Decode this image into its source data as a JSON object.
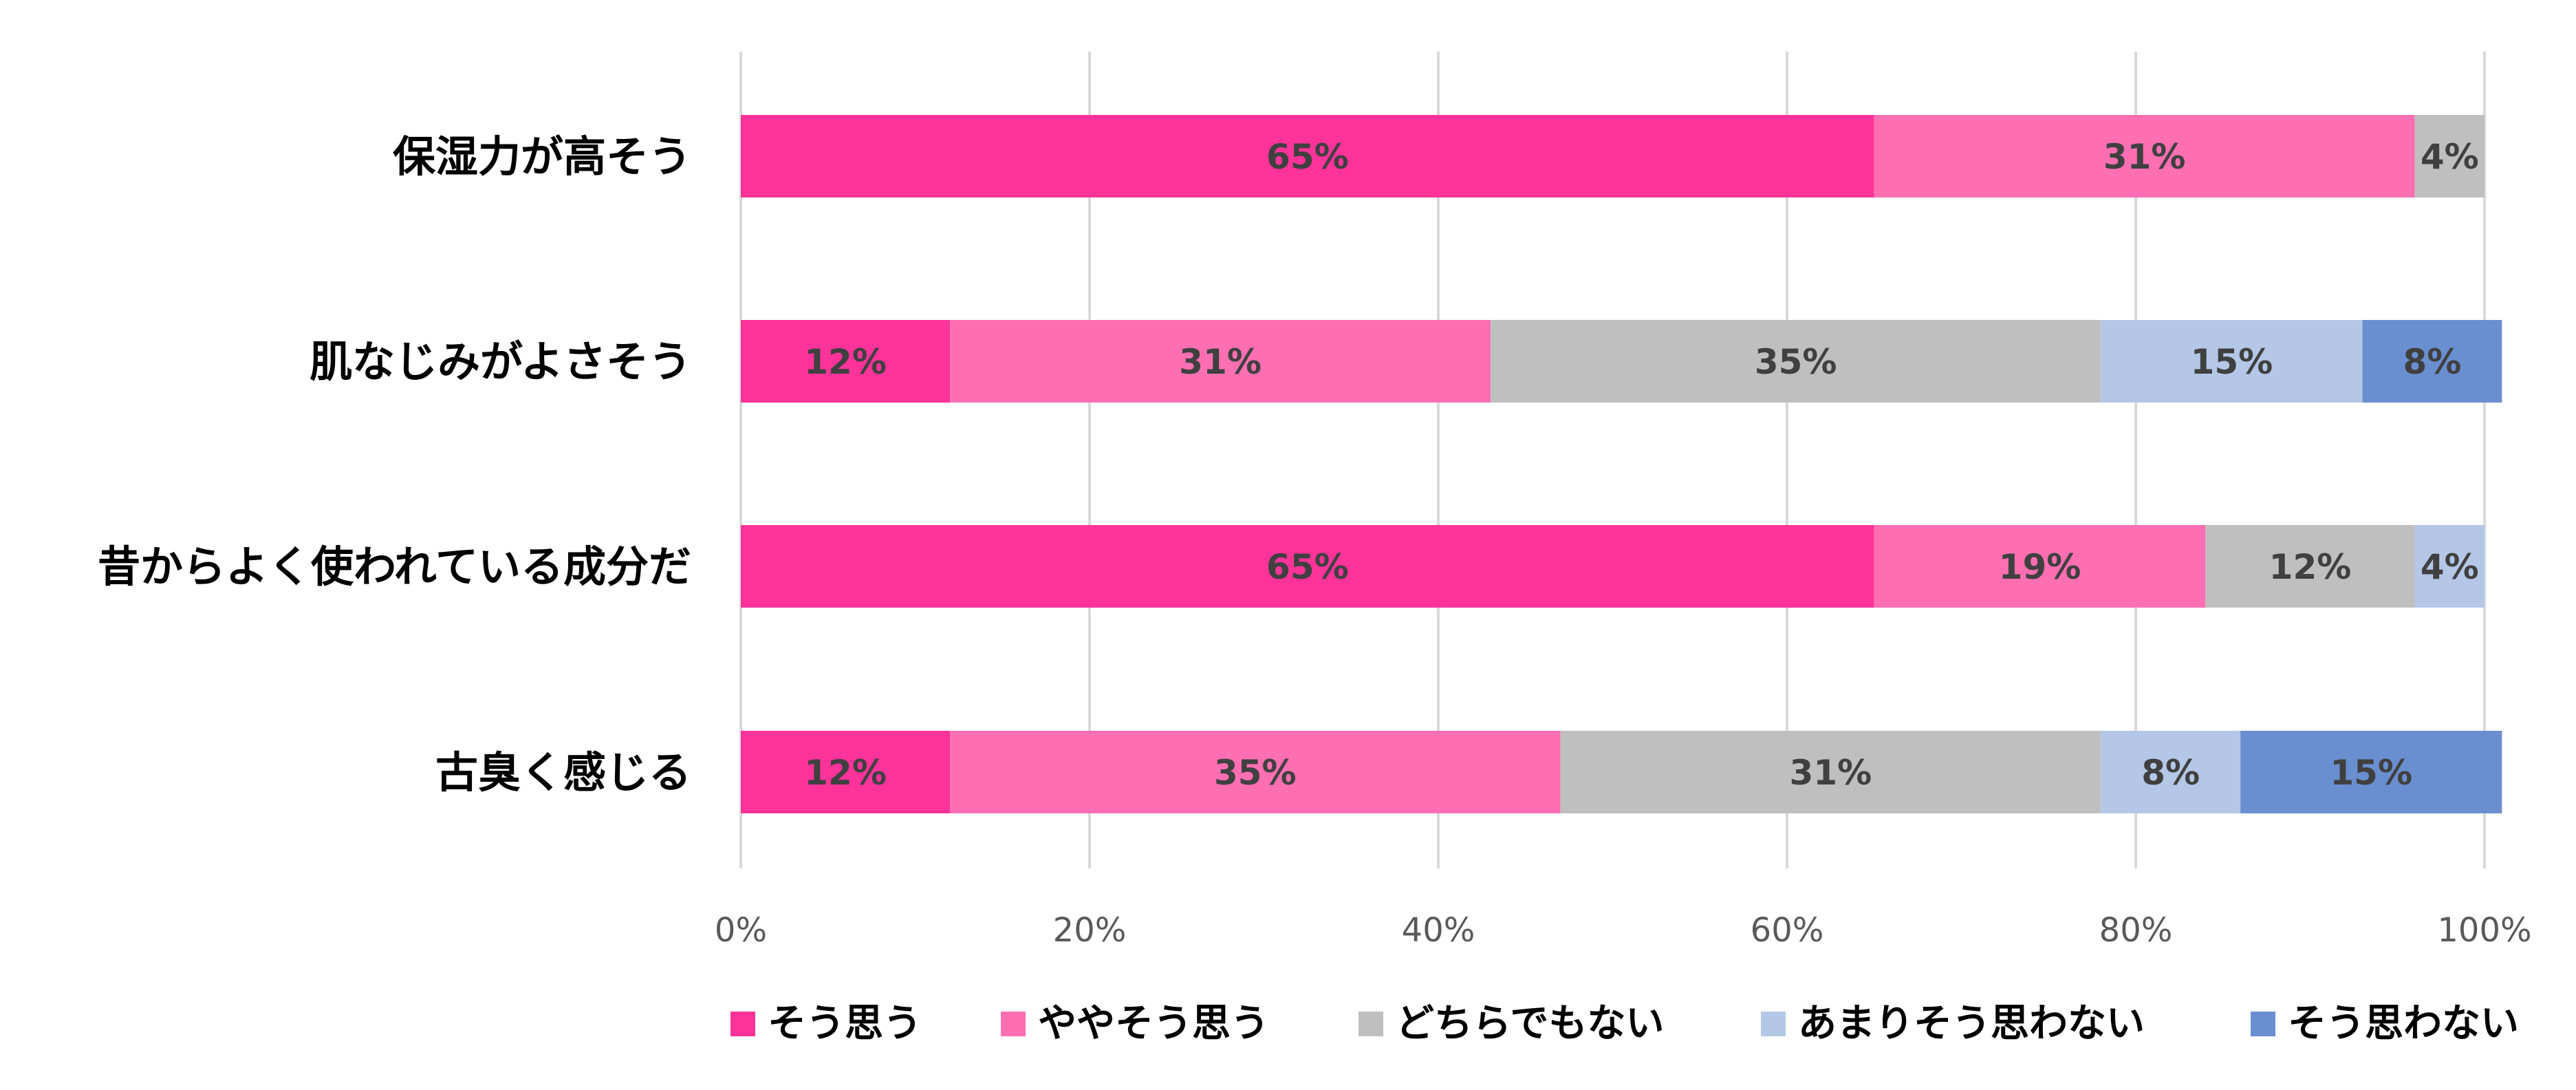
{
  "chart_data": {
    "type": "bar",
    "orientation": "horizontal",
    "stacked": "percent",
    "categories": [
      "保湿力が高そう",
      "肌なじみがよさそう",
      "昔からよく使われている成分だ",
      "古臭く感じる"
    ],
    "series": [
      {
        "name": "そう思う",
        "color": "#ff3399",
        "values": [
          65,
          12,
          65,
          12
        ],
        "labels": [
          "65%",
          "12%",
          "65%",
          "12%"
        ]
      },
      {
        "name": "ややそう思う",
        "color": "#ff6fb2",
        "values": [
          31,
          31,
          19,
          35
        ],
        "labels": [
          "31%",
          "31%",
          "19%",
          "35%"
        ]
      },
      {
        "name": "どちらでもない",
        "color": "#bfbfbf",
        "values": [
          4,
          35,
          12,
          31
        ],
        "labels": [
          "4%",
          "35%",
          "12%",
          "31%"
        ]
      },
      {
        "name": "あまりそう思わない",
        "color": "#b4c7e7",
        "values": [
          0,
          15,
          4,
          8
        ],
        "labels": [
          "",
          "15%",
          "4%",
          "8%"
        ]
      },
      {
        "name": "そう思わない",
        "color": "#6a8fd0",
        "values": [
          0,
          8,
          0,
          15
        ],
        "labels": [
          "",
          "8%",
          "",
          "15%"
        ]
      }
    ],
    "xlim": [
      0,
      100
    ],
    "xticks": [
      "0%",
      "20%",
      "40%",
      "60%",
      "80%",
      "100%"
    ],
    "grid": "vertical",
    "legend": "bottom"
  }
}
